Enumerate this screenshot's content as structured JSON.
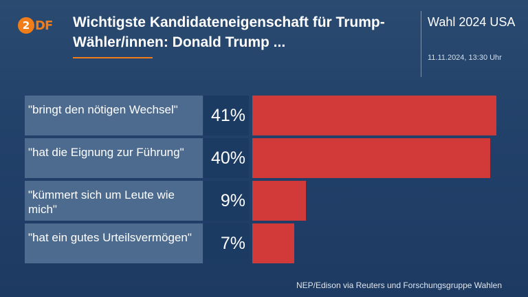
{
  "header": {
    "logo_text": "ZDF",
    "title": "Wichtigste Kandidateneigenschaft für Trump-Wähler/innen: Donald Trump ...",
    "election": "Wahl 2024 USA",
    "timestamp": "11.11.2024, 13:30 Uhr"
  },
  "chart_data": {
    "type": "bar",
    "orientation": "horizontal",
    "title": "Wichtigste Kandidateneigenschaft für Trump-Wähler/innen: Donald Trump ...",
    "categories": [
      "\"bringt den nötigen Wechsel\"",
      "\"hat die Eignung zur Führung\"",
      "\"kümmert sich um Leute wie mich\"",
      "\"hat ein gutes Urteilsvermögen\""
    ],
    "values": [
      41,
      40,
      9,
      7
    ],
    "value_labels": [
      "41%",
      "40%",
      "9%",
      "7%"
    ],
    "xlim": [
      0,
      41
    ],
    "bar_color": "#d23a3a",
    "grid": false,
    "legend": "none"
  },
  "source": "NEP/Edison via Reuters und Forschungsgruppe Wahlen"
}
